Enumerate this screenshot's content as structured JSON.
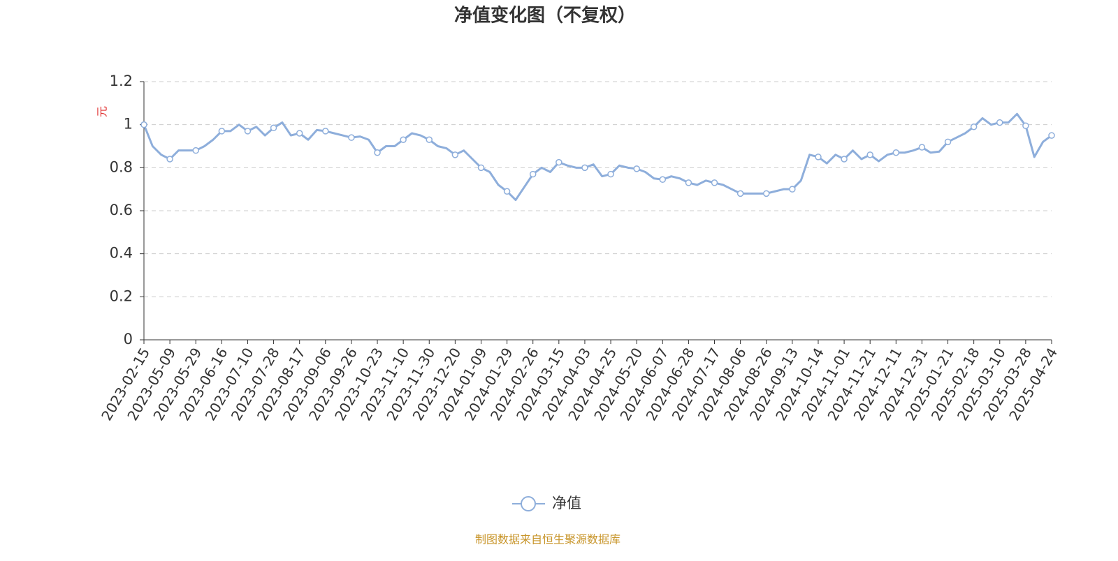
{
  "chart_data": {
    "type": "line",
    "title": "净值变化图（不复权）",
    "y_label": "元",
    "source": "制图数据来自恒生聚源数据库",
    "categories": [
      "2023-02-15",
      null,
      null,
      "2023-05-09",
      null,
      null,
      "2023-05-29",
      null,
      null,
      "2023-06-16",
      null,
      null,
      "2023-07-10",
      null,
      null,
      "2023-07-28",
      null,
      null,
      "2023-08-17",
      null,
      null,
      "2023-09-06",
      null,
      null,
      "2023-09-26",
      null,
      null,
      "2023-10-23",
      null,
      null,
      "2023-11-10",
      null,
      null,
      "2023-11-30",
      null,
      null,
      "2023-12-20",
      null,
      null,
      "2024-01-09",
      null,
      null,
      "2024-01-29",
      null,
      null,
      "2024-02-26",
      null,
      null,
      "2024-03-15",
      null,
      null,
      "2024-04-03",
      null,
      null,
      "2024-04-25",
      null,
      null,
      "2024-05-20",
      null,
      null,
      "2024-06-07",
      null,
      null,
      "2024-06-28",
      null,
      null,
      "2024-07-17",
      null,
      null,
      "2024-08-06",
      null,
      null,
      "2024-08-26",
      null,
      null,
      "2024-09-13",
      null,
      null,
      "2024-10-14",
      null,
      null,
      "2024-11-01",
      null,
      null,
      "2024-11-21",
      null,
      null,
      "2024-12-11",
      null,
      null,
      "2024-12-31",
      null,
      null,
      "2025-01-21",
      null,
      null,
      "2025-02-18",
      null,
      null,
      "2025-03-10",
      null,
      null,
      "2025-03-28",
      null,
      null,
      "2025-04-24"
    ],
    "series": [
      {
        "name": "净值",
        "color": "#8eaedb",
        "values": [
          1.0,
          0.9,
          0.86,
          0.84,
          0.88,
          0.88,
          0.88,
          0.9,
          0.93,
          0.97,
          0.97,
          1.0,
          0.97,
          0.99,
          0.95,
          0.985,
          1.01,
          0.95,
          0.96,
          0.93,
          0.975,
          0.97,
          0.96,
          0.95,
          0.94,
          0.945,
          0.93,
          0.87,
          0.9,
          0.9,
          0.93,
          0.96,
          0.95,
          0.93,
          0.9,
          0.89,
          0.86,
          0.88,
          0.84,
          0.8,
          0.78,
          0.72,
          0.69,
          0.65,
          0.71,
          0.77,
          0.8,
          0.78,
          0.825,
          0.81,
          0.8,
          0.8,
          0.815,
          0.76,
          0.77,
          0.81,
          0.8,
          0.795,
          0.78,
          0.75,
          0.745,
          0.76,
          0.75,
          0.73,
          0.72,
          0.74,
          0.73,
          0.72,
          0.7,
          0.68,
          0.68,
          0.68,
          0.68,
          0.69,
          0.7,
          0.7,
          0.74,
          0.86,
          0.85,
          0.82,
          0.86,
          0.84,
          0.88,
          0.84,
          0.86,
          0.83,
          0.86,
          0.87,
          0.87,
          0.88,
          0.895,
          0.87,
          0.875,
          0.92,
          0.94,
          0.96,
          0.99,
          1.03,
          1.0,
          1.01,
          1.01,
          1.05,
          0.995,
          0.85,
          0.92,
          0.95
        ]
      }
    ],
    "ylim": [
      0,
      1.2
    ],
    "yticks": [
      0,
      0.2,
      0.4,
      0.6,
      0.8,
      1,
      1.2
    ],
    "grid": true
  }
}
